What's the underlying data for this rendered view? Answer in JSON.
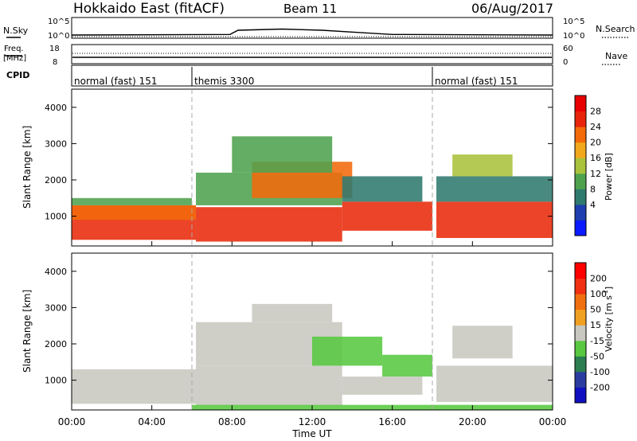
{
  "header": {
    "station": "Hokkaido East (fitACF)",
    "beam": "Beam 11",
    "date": "06/Aug/2017"
  },
  "top_panels": {
    "nsky": {
      "label": "N.Sky",
      "ticks": [
        "10^5",
        "10^0"
      ]
    },
    "nsearch": {
      "label": "N.Search",
      "ticks": [
        "10^5",
        "10^0"
      ]
    },
    "freq": {
      "label_line1": "Freq.",
      "label_line2": "[MHz]",
      "ticks": [
        "18",
        "8"
      ]
    },
    "nave": {
      "label": "Nave",
      "ticks": [
        "60",
        "0"
      ]
    },
    "cpid": {
      "label": "CPID",
      "segments": [
        {
          "label": "normal (fast) 151",
          "start_hour": 0,
          "end_hour": 6
        },
        {
          "label": "themis 3300",
          "start_hour": 6,
          "end_hour": 18
        },
        {
          "label": "normal (fast) 151",
          "start_hour": 18,
          "end_hour": 24
        }
      ]
    }
  },
  "power_panel": {
    "ylabel": "Slant Range [km]",
    "yticks": [
      "1000",
      "2000",
      "3000",
      "4000"
    ],
    "colorbar": {
      "title": "Power [dB]",
      "ticks": [
        "4",
        "8",
        "12",
        "16",
        "20",
        "24",
        "28"
      ],
      "colors": [
        "#0a1cff",
        "#1f3fb0",
        "#2f7a6e",
        "#4ea24e",
        "#a8c23c",
        "#f2a81c",
        "#f26a0a",
        "#e8250a",
        "#e80000"
      ]
    }
  },
  "velocity_panel": {
    "ylabel": "Slant Range [km]",
    "yticks": [
      "1000",
      "2000",
      "3000",
      "4000"
    ],
    "colorbar": {
      "title": "Velocity [m s",
      "title_sup": "-1",
      "title_close": "]",
      "ticks": [
        "200",
        "100",
        "50",
        "15",
        "-15",
        "-50",
        "-100",
        "-200"
      ],
      "colors": [
        "#1010c0",
        "#2a3ca0",
        "#2a7e50",
        "#58c840",
        "#c8c8c0",
        "#f0a020",
        "#f07010",
        "#f03010",
        "#ff0000"
      ]
    }
  },
  "time_axis": {
    "ticks": [
      "00:00",
      "04:00",
      "08:00",
      "12:00",
      "16:00",
      "20:00",
      "00:00"
    ],
    "label": "Time UT"
  },
  "chart_data": {
    "type": "heatmap",
    "x_range_hours": [
      0,
      24
    ],
    "y_range_km": [
      180,
      4500
    ],
    "power_regions": [
      {
        "t0": 0.0,
        "t1": 6.2,
        "r0": 350,
        "r1": 1300,
        "color": "#e82a0a"
      },
      {
        "t0": 0.0,
        "t1": 6.2,
        "r0": 900,
        "r1": 1300,
        "color": "#f26a0a"
      },
      {
        "t0": 0.0,
        "t1": 6.0,
        "r0": 1300,
        "r1": 1500,
        "color": "#4ea24e"
      },
      {
        "t0": 6.2,
        "t1": 13.5,
        "r0": 300,
        "r1": 1250,
        "color": "#e82a0a"
      },
      {
        "t0": 6.2,
        "t1": 13.5,
        "r0": 1300,
        "r1": 2200,
        "color": "#4ea24e"
      },
      {
        "t0": 9.0,
        "t1": 14.0,
        "r0": 1500,
        "r1": 2500,
        "color": "#f26a0a"
      },
      {
        "t0": 8.0,
        "t1": 13.0,
        "r0": 2200,
        "r1": 3200,
        "color": "#4ea24e"
      },
      {
        "t0": 13.5,
        "t1": 18.0,
        "r0": 600,
        "r1": 1400,
        "color": "#e82a0a"
      },
      {
        "t0": 13.5,
        "t1": 17.5,
        "r0": 1400,
        "r1": 2100,
        "color": "#2f7a6e"
      },
      {
        "t0": 18.2,
        "t1": 24.0,
        "r0": 400,
        "r1": 1400,
        "color": "#e82a0a"
      },
      {
        "t0": 18.2,
        "t1": 24.0,
        "r0": 1400,
        "r1": 2100,
        "color": "#2f7a6e"
      },
      {
        "t0": 19.0,
        "t1": 22.0,
        "r0": 2100,
        "r1": 2700,
        "color": "#a8c23c"
      }
    ],
    "velocity_regions": [
      {
        "t0": 0.0,
        "t1": 6.2,
        "r0": 350,
        "r1": 1300,
        "color": "#c8c8c0"
      },
      {
        "t0": 6.2,
        "t1": 13.5,
        "r0": 300,
        "r1": 1400,
        "color": "#c8c8c0"
      },
      {
        "t0": 6.2,
        "t1": 13.5,
        "r0": 1400,
        "r1": 2600,
        "color": "#c8c8c0"
      },
      {
        "t0": 9.0,
        "t1": 13.0,
        "r0": 2600,
        "r1": 3100,
        "color": "#c8c8c0"
      },
      {
        "t0": 12.0,
        "t1": 15.5,
        "r0": 1400,
        "r1": 2200,
        "color": "#58c840"
      },
      {
        "t0": 15.5,
        "t1": 18.0,
        "r0": 1100,
        "r1": 1700,
        "color": "#58c840"
      },
      {
        "t0": 13.5,
        "t1": 17.5,
        "r0": 600,
        "r1": 1100,
        "color": "#c8c8c0"
      },
      {
        "t0": 18.2,
        "t1": 24.0,
        "r0": 400,
        "r1": 1400,
        "color": "#c8c8c0"
      },
      {
        "t0": 19.0,
        "t1": 22.0,
        "r0": 1600,
        "r1": 2500,
        "color": "#c8c8c0"
      },
      {
        "t0": 6.0,
        "t1": 24.0,
        "r0": 190,
        "r1": 320,
        "color": "#58c840"
      }
    ],
    "nsky_profile": [
      {
        "t": 0,
        "v": 0.2
      },
      {
        "t": 7.9,
        "v": 0.25
      },
      {
        "t": 8.3,
        "v": 0.6
      },
      {
        "t": 10.5,
        "v": 0.7
      },
      {
        "t": 12.5,
        "v": 0.6
      },
      {
        "t": 14.0,
        "v": 0.45
      },
      {
        "t": 16.0,
        "v": 0.25
      },
      {
        "t": 24,
        "v": 0.2
      }
    ]
  }
}
